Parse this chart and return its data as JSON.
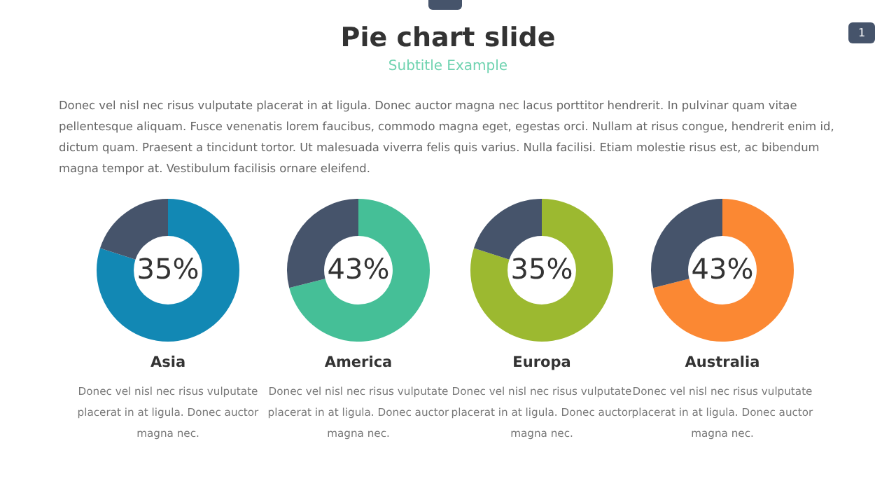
{
  "chart_data": [
    {
      "type": "other",
      "title": "Pie chart slide",
      "subtitle": "Subtitle Example",
      "annotations": [
        "Donec vel nisl nec risus vulputate placerat in at ligula. Donec auctor magna nec lacus porttitor hendrerit. In pulvinar quam vitae pellentesque aliquam. Fusce venenatis lorem faucibus, commodo magna eget, egestas orci. Nullam at risus congue, hendrerit enim id, dictum quam. Praesent a tincidunt tortor. Ut malesuada viverra felis quis varius. Nulla facilisi. Etiam molestie risus est, ac bibendum magna tempor at. Vestibulum facilisis ornare eleifend.",
        "1"
      ]
    },
    {
      "type": "donut",
      "title": "Asia",
      "categories": [
        null,
        null
      ],
      "values": [
        80,
        20
      ],
      "colors": [
        "#1288b4",
        "#46546b"
      ],
      "annotations": [
        "35%",
        "Donec vel nisl nec risus vulputate placerat in at ligula. Donec auctor magna nec."
      ]
    },
    {
      "type": "donut",
      "title": "America",
      "categories": [
        null,
        null
      ],
      "values": [
        71,
        29
      ],
      "colors": [
        "#45bf97",
        "#46546b"
      ],
      "annotations": [
        "43%",
        "Donec vel nisl nec risus vulputate placerat in at ligula. Donec auctor magna nec."
      ]
    },
    {
      "type": "donut",
      "title": "Europa",
      "categories": [
        null,
        null
      ],
      "values": [
        80,
        20
      ],
      "colors": [
        "#9cb930",
        "#46546b"
      ],
      "annotations": [
        "35%",
        "Donec vel nisl nec risus vulputate placerat in at ligula. Donec auctor magna nec."
      ]
    },
    {
      "type": "donut",
      "title": "Australia",
      "categories": [
        null,
        null
      ],
      "values": [
        71,
        29
      ],
      "colors": [
        "#fb8833",
        "#46546b"
      ],
      "annotations": [
        "43%",
        "Donec vel nisl nec risus vulputate placerat in at ligula. Donec auctor magna nec."
      ]
    }
  ]
}
